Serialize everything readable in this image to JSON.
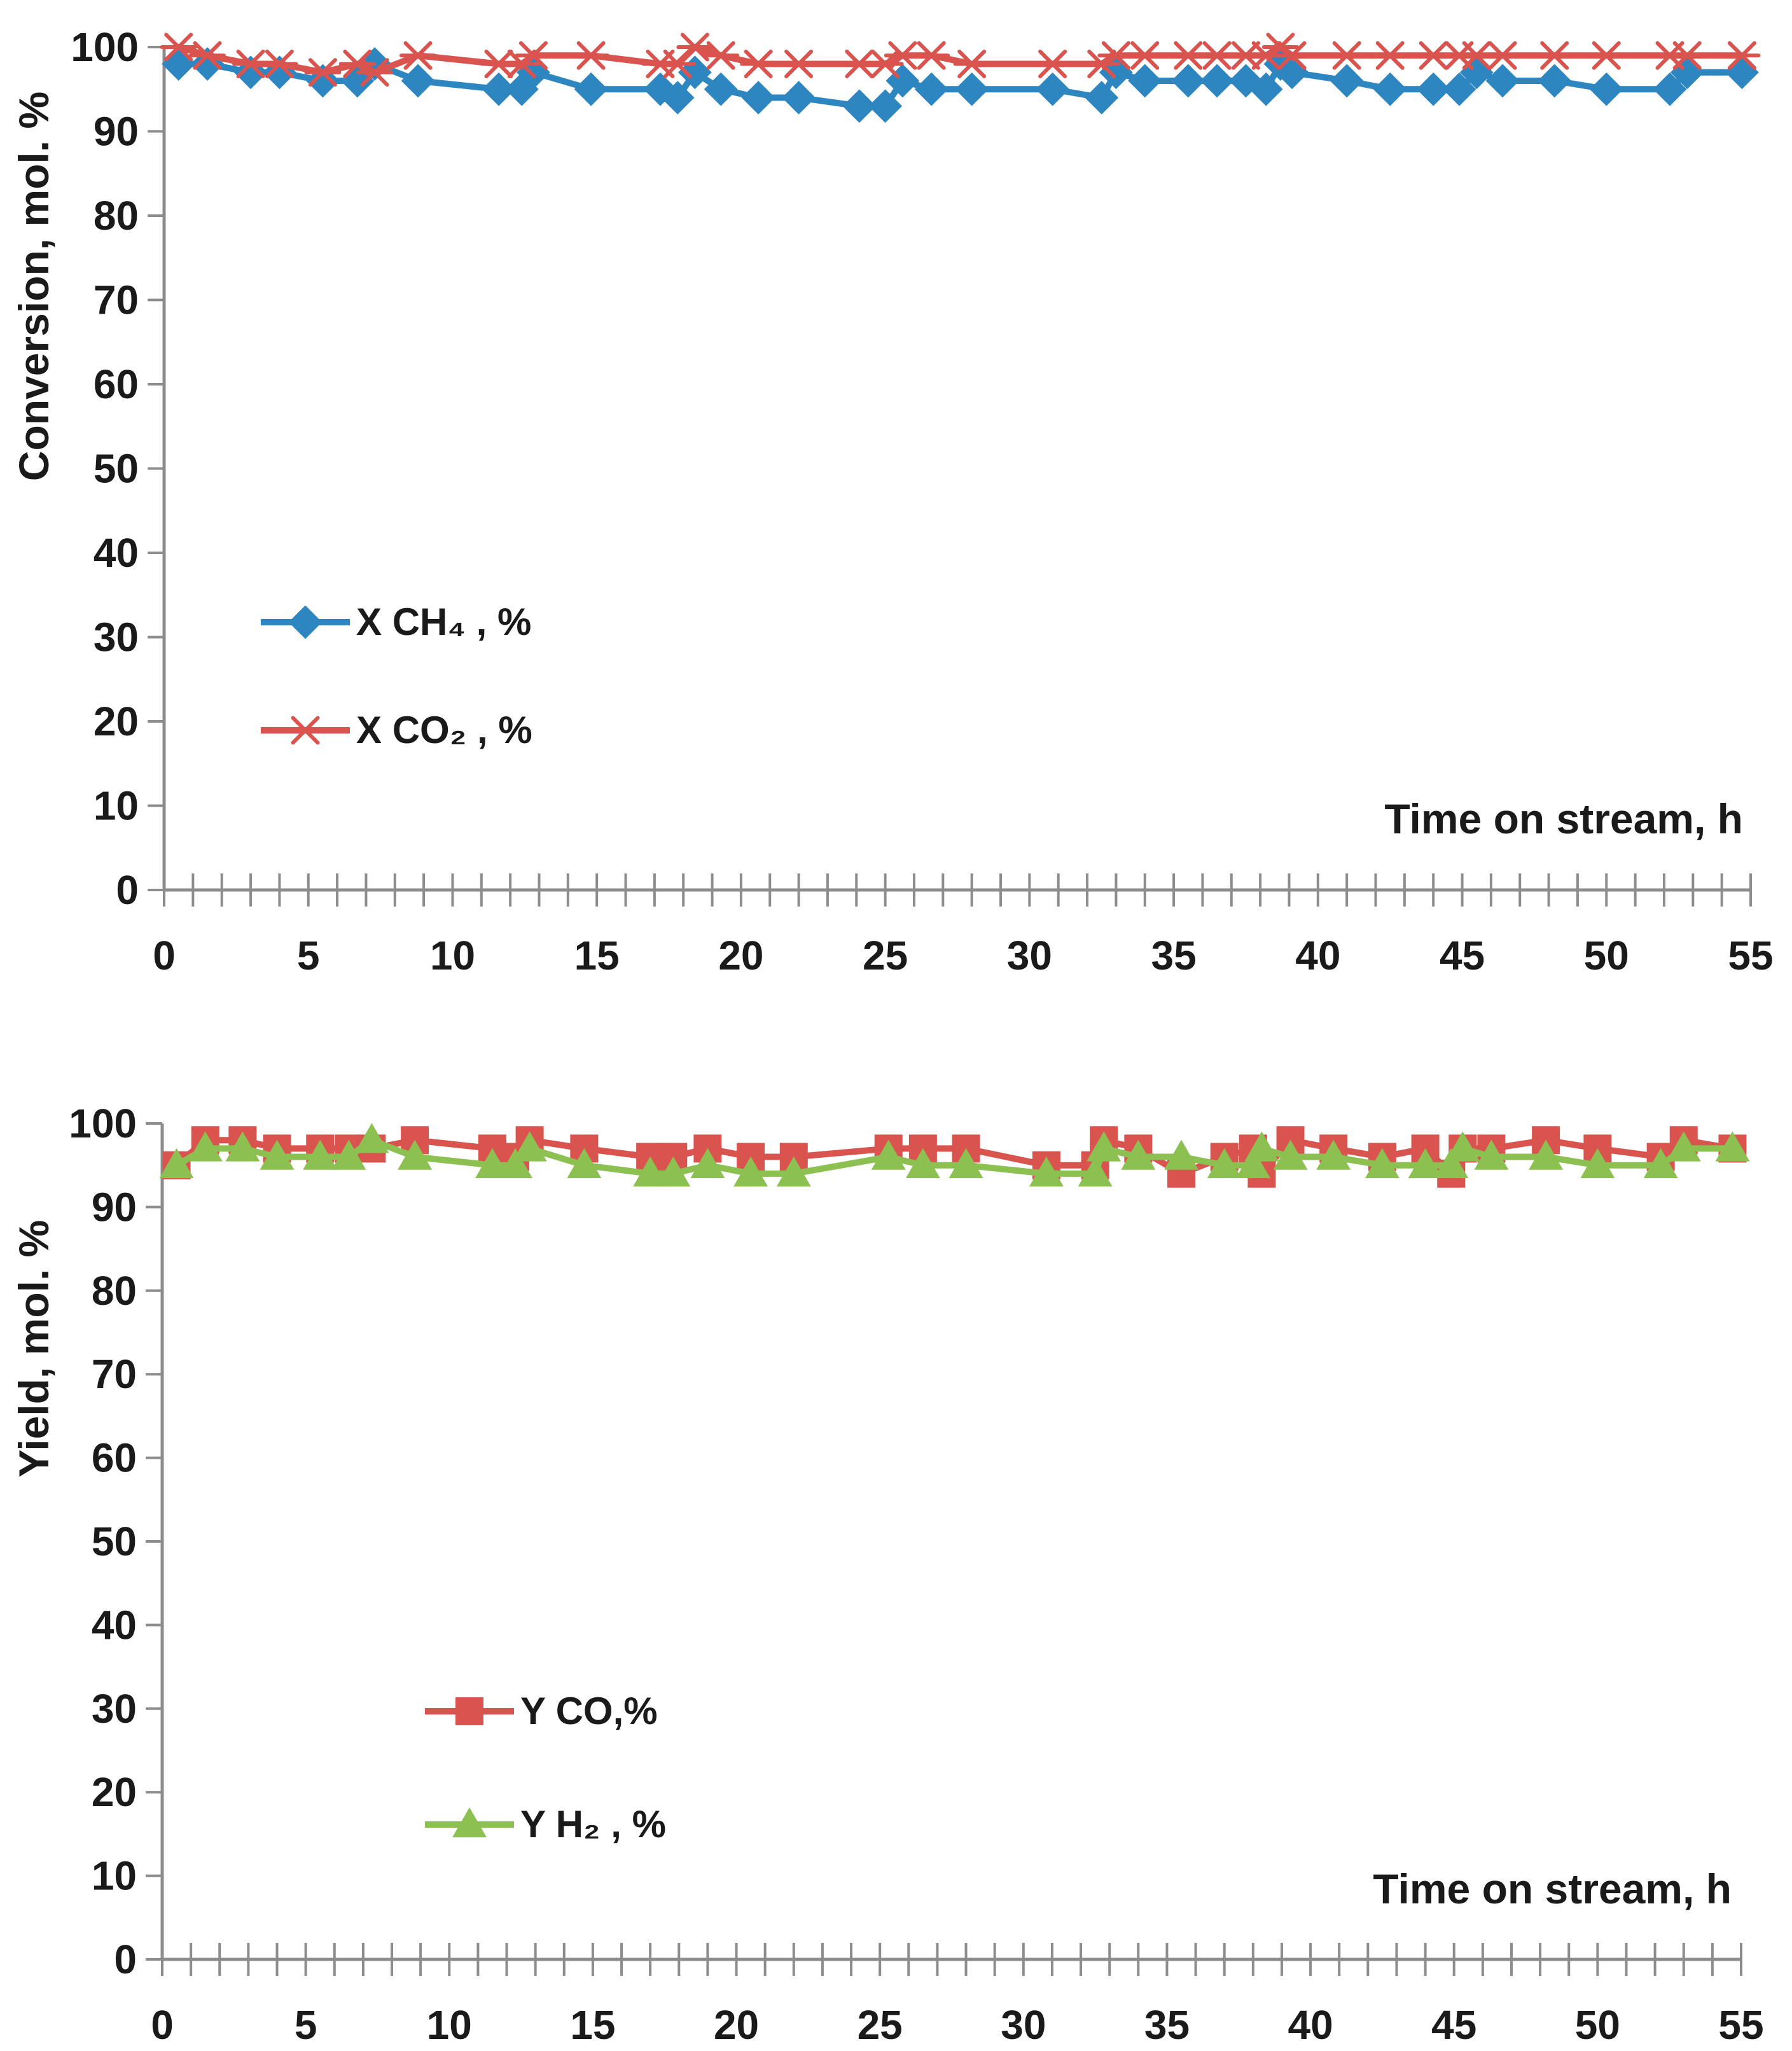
{
  "chart_data": [
    {
      "type": "line",
      "title": "",
      "xlabel": "Time on stream, h",
      "ylabel": "Conversion, mol. %",
      "xlim": [
        0,
        55
      ],
      "ylim": [
        0,
        100
      ],
      "x_major_ticks": [
        "0",
        "5",
        "10",
        "15",
        "20",
        "25",
        "30",
        "35",
        "40",
        "45",
        "50",
        "55"
      ],
      "y_major_ticks": [
        "0",
        "10",
        "20",
        "30",
        "40",
        "50",
        "60",
        "70",
        "80",
        "90",
        "100"
      ],
      "legend_position": "left-middle",
      "grid": false,
      "series": [
        {
          "name": "X CH₄ , %",
          "color": "#2e86c1",
          "marker": "diamond",
          "x": [
            0.5,
            1.5,
            3,
            4,
            5.5,
            6.7,
            7.3,
            8.8,
            11.6,
            12.4,
            12.8,
            14.8,
            17.2,
            17.8,
            18.4,
            19.3,
            20.6,
            22,
            24.1,
            25,
            25.6,
            26.6,
            28,
            30.8,
            32.5,
            33,
            34,
            35.5,
            36.5,
            37.5,
            38.2,
            38.7,
            39.1,
            41,
            42.5,
            44,
            44.9,
            45.5,
            46.4,
            48.2,
            50,
            52.2,
            52.8,
            54.7
          ],
          "y": [
            98,
            98,
            97,
            97,
            96,
            96,
            98,
            96,
            95,
            95,
            97,
            95,
            95,
            94,
            97,
            95,
            94,
            94,
            93,
            93,
            96,
            95,
            95,
            95,
            94,
            97,
            96,
            96,
            96,
            96,
            95,
            98,
            97,
            96,
            95,
            95,
            95,
            97,
            96,
            96,
            95,
            95,
            97,
            97
          ]
        },
        {
          "name": "X CO₂ , %",
          "color": "#d9534f",
          "marker": "star",
          "x": [
            0.5,
            1.5,
            3,
            4,
            5.5,
            6.7,
            7.3,
            8.8,
            11.6,
            12.4,
            12.8,
            14.8,
            17.2,
            17.8,
            18.4,
            19.3,
            20.6,
            22,
            24.1,
            25,
            25.6,
            26.6,
            28,
            30.8,
            32.5,
            33,
            34,
            35.5,
            36.5,
            37.5,
            38.2,
            38.7,
            39.1,
            41,
            42.5,
            44,
            44.9,
            45.5,
            46.4,
            48.2,
            50,
            52.2,
            52.8,
            54.7
          ],
          "y": [
            100,
            99,
            98,
            98,
            97,
            98,
            97,
            99,
            98,
            98,
            99,
            99,
            98,
            98,
            100,
            99,
            98,
            98,
            98,
            98,
            99,
            99,
            98,
            98,
            98,
            99,
            99,
            99,
            99,
            99,
            99,
            100,
            99,
            99,
            99,
            99,
            99,
            99,
            99,
            99,
            99,
            99,
            99,
            99
          ]
        }
      ]
    },
    {
      "type": "line",
      "title": "",
      "xlabel": "Time on stream, h",
      "ylabel": "Yield, mol. %",
      "xlim": [
        0,
        55
      ],
      "ylim": [
        0,
        100
      ],
      "x_major_ticks": [
        "0",
        "5",
        "10",
        "15",
        "20",
        "25",
        "30",
        "35",
        "40",
        "45",
        "50",
        "55"
      ],
      "y_major_ticks": [
        "0",
        "10",
        "20",
        "30",
        "40",
        "50",
        "60",
        "70",
        "80",
        "90",
        "100"
      ],
      "legend_position": "left-lower-middle",
      "grid": false,
      "series": [
        {
          "name": "Y CO,%",
          "color": "#d9534f",
          "marker": "square",
          "x": [
            0.5,
            1.5,
            2.8,
            4,
            5.5,
            6.5,
            7.3,
            8.8,
            11.5,
            12.3,
            12.8,
            14.7,
            17,
            17.8,
            19,
            20.5,
            22,
            25.3,
            26.5,
            28,
            30.8,
            32.5,
            32.8,
            34,
            35.5,
            37,
            38,
            38.3,
            39.3,
            40.8,
            42.5,
            44,
            44.9,
            45.3,
            46.3,
            48.2,
            50,
            52.2,
            53,
            54.7
          ],
          "y": [
            95,
            98,
            98,
            97,
            97,
            97,
            97,
            98,
            97,
            96,
            98,
            97,
            96,
            96,
            97,
            96,
            96,
            97,
            97,
            97,
            95,
            95,
            98,
            97,
            94,
            96,
            97,
            94,
            98,
            97,
            96,
            97,
            94,
            97,
            97,
            98,
            97,
            96,
            98,
            97
          ]
        },
        {
          "name": "Y H₂ , %",
          "color": "#8cc152",
          "marker": "triangle",
          "x": [
            0.5,
            1.5,
            2.8,
            4,
            5.5,
            6.5,
            7.3,
            8.8,
            11.5,
            12.3,
            12.8,
            14.7,
            17,
            17.8,
            19,
            20.5,
            22,
            25.3,
            26.5,
            28,
            30.8,
            32.5,
            32.8,
            34,
            35.5,
            37,
            38,
            38.3,
            39.3,
            40.8,
            42.5,
            44,
            44.9,
            45.3,
            46.3,
            48.2,
            50,
            52.2,
            53,
            54.7
          ],
          "y": [
            95,
            97,
            97,
            96,
            96,
            96,
            98,
            96,
            95,
            95,
            97,
            95,
            94,
            94,
            95,
            94,
            94,
            96,
            95,
            95,
            94,
            94,
            97,
            96,
            96,
            95,
            95,
            97,
            96,
            96,
            95,
            95,
            95,
            97,
            96,
            96,
            95,
            95,
            97,
            97
          ]
        }
      ]
    }
  ]
}
